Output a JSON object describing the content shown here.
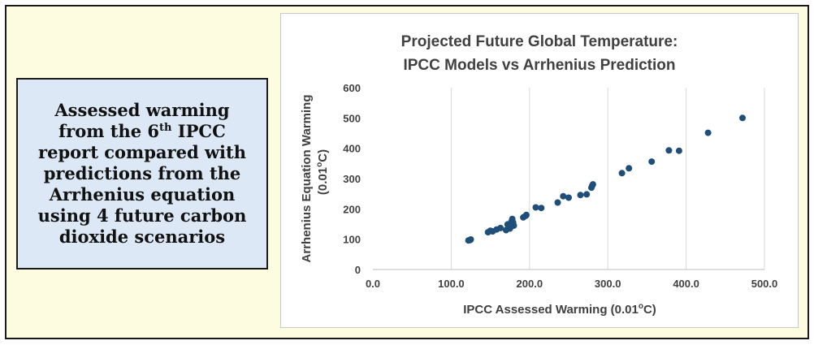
{
  "caption": {
    "line1": "Assessed warming",
    "line2_pre": "from the 6",
    "line2_sup": "th",
    "line2_post": " IPCC",
    "line3": "report compared with",
    "line4": "predictions from the",
    "line5": "Arrhenius equation",
    "line6": "using 4 future carbon",
    "line7": "dioxide scenarios"
  },
  "colors": {
    "background": "#fdfbe0",
    "caption_box": "#dde8f6",
    "marker": "#1f4e79"
  },
  "chart_data": {
    "type": "scatter",
    "title_line1": "Projected Future Global Temperature:",
    "title_line2": "IPCC Models vs Arrhenius Prediction",
    "xlabel": "IPCC Assessed Warming (0.01",
    "xlabel_sup": "o",
    "xlabel_end": "C)",
    "ylabel": "Arrhenius Equation Warming",
    "ylabel2": "(0.01",
    "ylabel2_sup": "o",
    "ylabel2_end": "C)",
    "xlim": [
      0,
      500
    ],
    "ylim": [
      0,
      600
    ],
    "xticks": [
      "0.0",
      "100.0",
      "200.0",
      "300.0",
      "400.0",
      "500.0"
    ],
    "yticks": [
      "0",
      "100",
      "200",
      "300",
      "400",
      "500",
      "600"
    ],
    "grid": "vertical",
    "points": [
      [
        122,
        96
      ],
      [
        124,
        97
      ],
      [
        125,
        99
      ],
      [
        147,
        123
      ],
      [
        150,
        128
      ],
      [
        153,
        126
      ],
      [
        158,
        132
      ],
      [
        163,
        137
      ],
      [
        170,
        130
      ],
      [
        172,
        149
      ],
      [
        173,
        143
      ],
      [
        175,
        135
      ],
      [
        176,
        140
      ],
      [
        177,
        158
      ],
      [
        178,
        167
      ],
      [
        179,
        155
      ],
      [
        180,
        145
      ],
      [
        192,
        172
      ],
      [
        195,
        177
      ],
      [
        196,
        180
      ],
      [
        208,
        205
      ],
      [
        215,
        203
      ],
      [
        236,
        221
      ],
      [
        243,
        242
      ],
      [
        250,
        237
      ],
      [
        265,
        246
      ],
      [
        273,
        248
      ],
      [
        279,
        270
      ],
      [
        280,
        276
      ],
      [
        281,
        281
      ],
      [
        318,
        318
      ],
      [
        327,
        334
      ],
      [
        356,
        356
      ],
      [
        378,
        393
      ],
      [
        391,
        392
      ],
      [
        428,
        451
      ],
      [
        472,
        500
      ]
    ]
  }
}
